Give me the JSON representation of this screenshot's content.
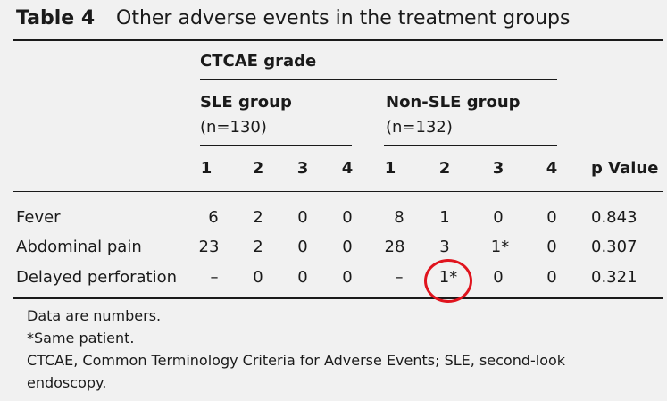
{
  "title": {
    "number": "Table 4",
    "text": "Other adverse events in the treatment groups"
  },
  "header": {
    "grade_label": "CTCAE grade",
    "groups": [
      {
        "name": "SLE group",
        "n": "(n=130)"
      },
      {
        "name": "Non-SLE group",
        "n": "(n=132)"
      }
    ],
    "grades": [
      "1",
      "2",
      "3",
      "4",
      "1",
      "2",
      "3",
      "4"
    ],
    "p_label": "p Value"
  },
  "rows": [
    {
      "label": "Fever",
      "cells": [
        "6",
        "2",
        "0",
        "0",
        "8",
        "1",
        "0",
        "0"
      ],
      "p": "0.843"
    },
    {
      "label": "Abdominal pain",
      "cells": [
        "23",
        "2",
        "0",
        "0",
        "28",
        "3",
        "1*",
        "0"
      ],
      "p": "0.307"
    },
    {
      "label": "Delayed perforation",
      "cells": [
        "–",
        "0",
        "0",
        "0",
        "–",
        "1*",
        "0",
        "0"
      ],
      "p": "0.321"
    }
  ],
  "footnotes": [
    "Data are numbers.",
    "*Same patient.",
    "CTCAE, Common Terminology Criteria for Adverse Events; SLE, second-look",
    "endoscopy."
  ],
  "highlight_color": "#e0141e"
}
